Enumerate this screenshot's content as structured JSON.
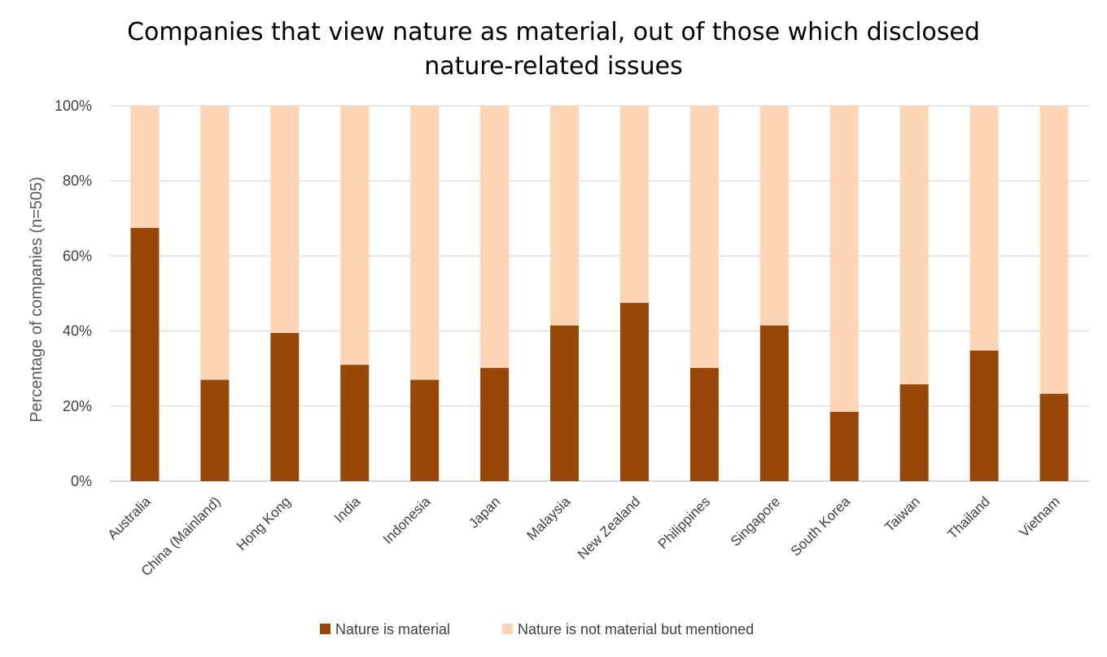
{
  "chart_data": {
    "type": "bar",
    "stacked": true,
    "title_lines": [
      "Companies that view nature as material, out of those which disclosed",
      "nature-related issues"
    ],
    "xlabel": "",
    "ylabel": "Percentage of companies (n=505)",
    "ylim": [
      0,
      100
    ],
    "yticks": [
      "0%",
      "20%",
      "40%",
      "60%",
      "80%",
      "100%"
    ],
    "grid": true,
    "legend_position": "bottom",
    "categories": [
      "Australia",
      "China (Mainland)",
      "Hong Kong",
      "India",
      "Indonesia",
      "Japan",
      "Malaysia",
      "New Zealand",
      "Philippines",
      "Singapore",
      "South Korea",
      "Taiwan",
      "Thailand",
      "Vietnam"
    ],
    "series": [
      {
        "name": "Nature is material",
        "color": "#974706",
        "values": [
          67.5,
          27,
          39.5,
          31,
          27,
          30.2,
          41.5,
          47.5,
          30.2,
          41.5,
          18.5,
          25.8,
          34.8,
          23.3
        ]
      },
      {
        "name": "Nature is not material but mentioned",
        "color": "#FBD5B5",
        "values": [
          32.5,
          73,
          60.5,
          69,
          73,
          69.8,
          58.5,
          52.5,
          69.8,
          58.5,
          81.5,
          74.2,
          65.2,
          76.7
        ]
      }
    ]
  }
}
